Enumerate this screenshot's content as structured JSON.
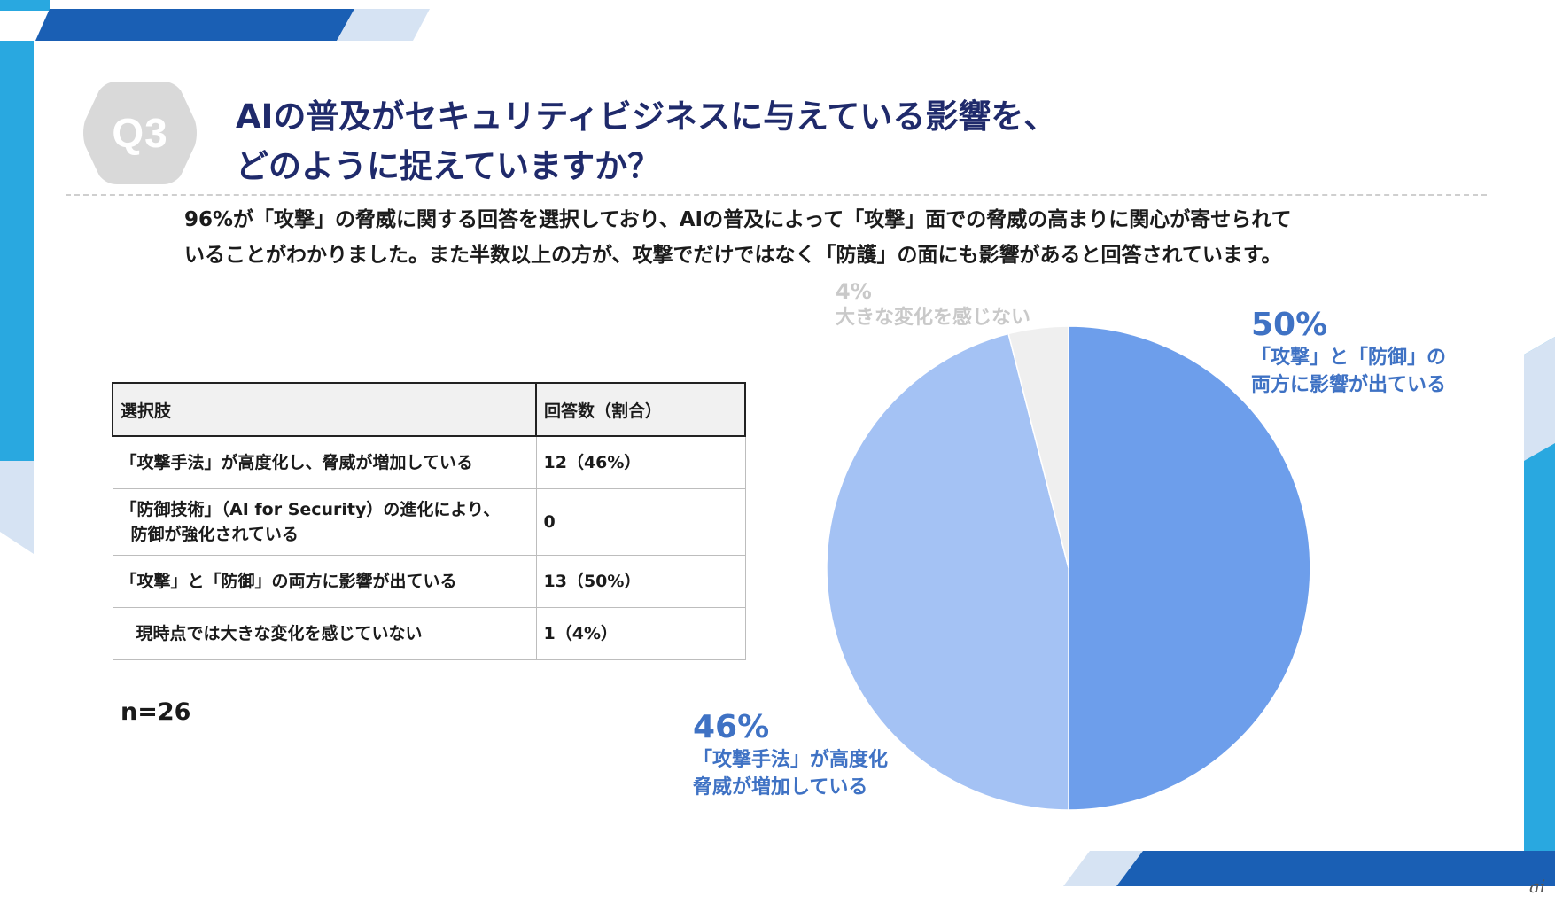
{
  "badge": {
    "label": "Q3"
  },
  "title": {
    "line1": "AIの普及がセキュリティビジネスに与えている影響を、",
    "line2": "どのように捉えていますか？"
  },
  "description": {
    "line1": "96%が「攻撃」の脅威に関する回答を選択しており、AIの普及によって「攻撃」面での脅威の高まりに関心が寄せられて",
    "line2": "いることがわかりました。また半数以上の方が、攻撃でだけではなく「防護」の面にも影響があると回答されています。"
  },
  "table": {
    "headers": [
      "選択肢",
      "回答数（割合）"
    ],
    "rows": [
      {
        "option": "「攻撃手法」が高度化し、脅威が増加している",
        "option_line2": "",
        "count": "12（46%）"
      },
      {
        "option": "「防御技術」（AI for Security）の進化により、",
        "option_line2": "防御が強化されている",
        "count": "0"
      },
      {
        "option": "「攻撃」と「防御」の両方に影響が出ている",
        "option_line2": "",
        "count": "13（50%）"
      },
      {
        "option": "現時点では大きな変化を感じていない",
        "option_line2": "",
        "count": "1（4%）"
      }
    ]
  },
  "n_label": "n=26",
  "chart_data": {
    "type": "pie",
    "start_angle": "12 o'clock",
    "direction": "clockwise",
    "slices": [
      {
        "pct_label": "50%",
        "value": 50,
        "label_line1": "「攻撃」と「防御」の",
        "label_line2": "両方に影響が出ている",
        "color": "#6d9eeb"
      },
      {
        "pct_label": "46%",
        "value": 46,
        "label_line1": "「攻撃手法」が高度化",
        "label_line2": "脅威が増加している",
        "color": "#a4c2f4"
      },
      {
        "pct_label": "4%",
        "value": 4,
        "label_line1": "大きな変化を感じない",
        "label_line2": "",
        "color": "#efefef"
      }
    ],
    "label_colors": {
      "primary": "#3f72c4",
      "muted": "#c9c9c9"
    },
    "legend": "none"
  },
  "colors": {
    "title": "#1f2a6b",
    "accent_dark": "#1a5fb4",
    "accent_light": "#29a8e0",
    "accent_pale": "#d6e3f3"
  },
  "watermark": "ai"
}
